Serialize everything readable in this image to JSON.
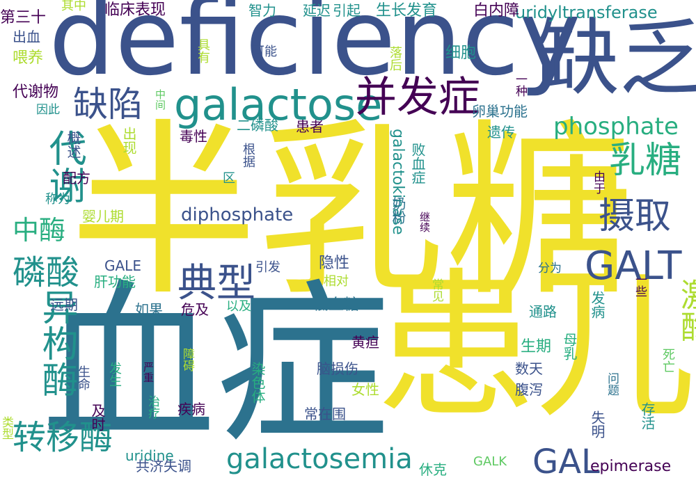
{
  "palette": {
    "dark_purple": "#440154",
    "indigo": "#3b528b",
    "blue": "#2c728e",
    "teal": "#21918c",
    "green": "#28ae80",
    "lime": "#5ec962",
    "yellow_green": "#addc30",
    "yellow": "#f0e12b"
  },
  "words": [
    "半乳糖",
    "血症",
    "患儿",
    "deficiency",
    "缺乏",
    "galactose",
    "并发症",
    "缺陷",
    "代谢",
    "乳糖",
    "GALT",
    "典型",
    "摄取",
    "磷酸",
    "异构酶",
    "激酶",
    "转移酶",
    "galactosemia",
    "GAL",
    "中酶",
    "phosphate",
    "diphosphate",
    "galactokinase",
    "uridyltransferase",
    "临床表现",
    "智力",
    "延迟",
    "引起",
    "生长发育",
    "白内障",
    "第三十",
    "出血",
    "喂养",
    "代谢物",
    "因此",
    "概述",
    "配方",
    "称为",
    "其中",
    "可能",
    "细胞",
    "具有",
    "落后",
    "卵巢功能",
    "遗传",
    "毒性",
    "二磷酸",
    "患者",
    "根据",
    "区",
    "出现",
    "中间",
    "婴儿期",
    "奶粉",
    "败血症",
    "一种",
    "由于",
    "继续",
    "GALE",
    "肝功能",
    "引发",
    "隐性",
    "相对",
    "分为",
    "常见",
    "一些",
    "远期",
    "如果",
    "危及",
    "以及",
    "低血糖",
    "通路",
    "发病",
    "黄疸",
    "生期",
    "母乳",
    "死亡",
    "脑损伤",
    "数天",
    "腹泻",
    "女性",
    "染色体",
    "常在围",
    "生命",
    "及时",
    "发生",
    "严重",
    "障碍",
    "治疗",
    "疾病",
    "问题",
    "存活",
    "失明",
    "类型",
    "uridine",
    "共济失调",
    "休克",
    "GALK",
    "epimerase"
  ]
}
